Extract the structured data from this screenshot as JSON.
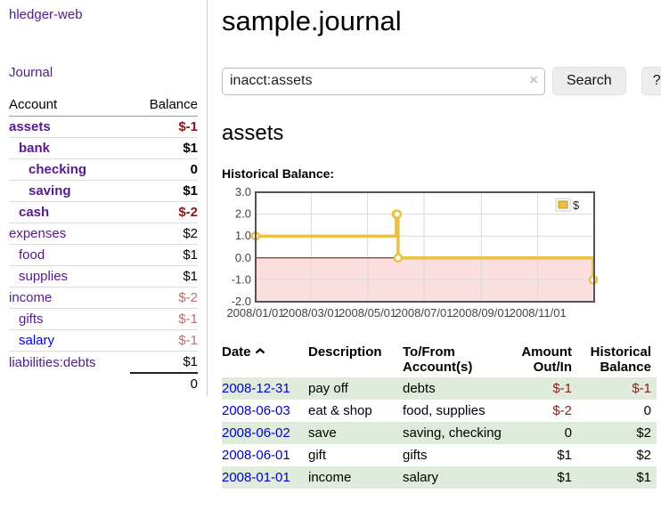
{
  "app": {
    "brand": "hledger-web"
  },
  "sidebar": {
    "nav_journal": "Journal",
    "accounts": {
      "header_account": "Account",
      "header_balance": "Balance",
      "rows": [
        {
          "name": "assets",
          "indent": 1,
          "bold": true,
          "blue": false,
          "balance": "$-1",
          "neg": "strong"
        },
        {
          "name": "bank",
          "indent": 2,
          "bold": true,
          "blue": false,
          "balance": "$1",
          "neg": ""
        },
        {
          "name": "checking",
          "indent": 3,
          "bold": true,
          "blue": false,
          "balance": "0",
          "neg": ""
        },
        {
          "name": "saving",
          "indent": 3,
          "bold": true,
          "blue": false,
          "balance": "$1",
          "neg": ""
        },
        {
          "name": "cash",
          "indent": 2,
          "bold": true,
          "blue": false,
          "balance": "$-2",
          "neg": "strong"
        },
        {
          "name": "expenses",
          "indent": 1,
          "bold": false,
          "blue": false,
          "balance": "$2",
          "neg": ""
        },
        {
          "name": "food",
          "indent": 2,
          "bold": false,
          "blue": false,
          "balance": "$1",
          "neg": ""
        },
        {
          "name": "supplies",
          "indent": 2,
          "bold": false,
          "blue": false,
          "balance": "$1",
          "neg": ""
        },
        {
          "name": "income",
          "indent": 1,
          "bold": false,
          "blue": false,
          "balance": "$-2",
          "neg": "soft"
        },
        {
          "name": "gifts",
          "indent": 2,
          "bold": false,
          "blue": false,
          "balance": "$-1",
          "neg": "soft"
        },
        {
          "name": "salary",
          "indent": 2,
          "bold": false,
          "blue": true,
          "balance": "$-1",
          "neg": "soft"
        },
        {
          "name": "liabilities:debts",
          "indent": 1,
          "bold": false,
          "blue": false,
          "balance": "$1",
          "neg": ""
        }
      ],
      "total": "0"
    }
  },
  "main": {
    "title": "sample.journal",
    "search": {
      "value": "inacct:assets",
      "clear_icon": "×",
      "button": "Search",
      "help": "?"
    },
    "account_heading": "assets",
    "chart_heading": "Historical Balance:"
  },
  "chart_data": {
    "type": "line",
    "title": "Historical Balance",
    "step": true,
    "x_range": [
      "2008-01-01",
      "2009-01-01"
    ],
    "x_ticks": [
      "2008/01/01",
      "2008/03/01",
      "2008/05/01",
      "2008/07/01",
      "2008/09/01",
      "2008/11/01"
    ],
    "x_tick_dates": [
      "2008-01-01",
      "2008-03-01",
      "2008-05-01",
      "2008-07-01",
      "2008-09-01",
      "2008-11-01"
    ],
    "y_ticks": [
      "3.0",
      "2.0",
      "1.0",
      "0.0",
      "-1.0",
      "-2.0"
    ],
    "ylim": [
      -2,
      3
    ],
    "legend": {
      "position": "top-right",
      "label": "$"
    },
    "colors": {
      "line": "#e8c240",
      "marker_fill": "#ffffff",
      "negative_region": "#fbdede",
      "zero_line": "#8b0000",
      "grid": "#d9d9d9",
      "border": "#545454"
    },
    "series": [
      {
        "name": "$",
        "points": [
          [
            "2008-01-01",
            1
          ],
          [
            "2008-06-01",
            2
          ],
          [
            "2008-06-02",
            2
          ],
          [
            "2008-06-03",
            0
          ],
          [
            "2008-12-31",
            -1
          ]
        ]
      }
    ]
  },
  "register": {
    "headers": {
      "date": "Date",
      "description": "Description",
      "accounts": "To/From Account(s)",
      "amount": "Amount Out/In",
      "balance": "Historical Balance"
    },
    "rows": [
      {
        "date": "2008-12-31",
        "description": "pay off",
        "accounts": "debts",
        "amount": "$-1",
        "amount_neg": true,
        "balance": "$-1",
        "balance_neg": true,
        "green": true
      },
      {
        "date": "2008-06-03",
        "description": "eat & shop",
        "accounts": "food, supplies",
        "amount": "$-2",
        "amount_neg": true,
        "balance": "0",
        "balance_neg": false,
        "green": false
      },
      {
        "date": "2008-06-02",
        "description": "save",
        "accounts": "saving, checking",
        "amount": "0",
        "amount_neg": false,
        "balance": "$2",
        "balance_neg": false,
        "green": true
      },
      {
        "date": "2008-06-01",
        "description": "gift",
        "accounts": "gifts",
        "amount": "$1",
        "amount_neg": false,
        "balance": "$2",
        "balance_neg": false,
        "green": false
      },
      {
        "date": "2008-01-01",
        "description": "income",
        "accounts": "salary",
        "amount": "$1",
        "amount_neg": false,
        "balance": "$1",
        "balance_neg": false,
        "green": true
      }
    ]
  }
}
